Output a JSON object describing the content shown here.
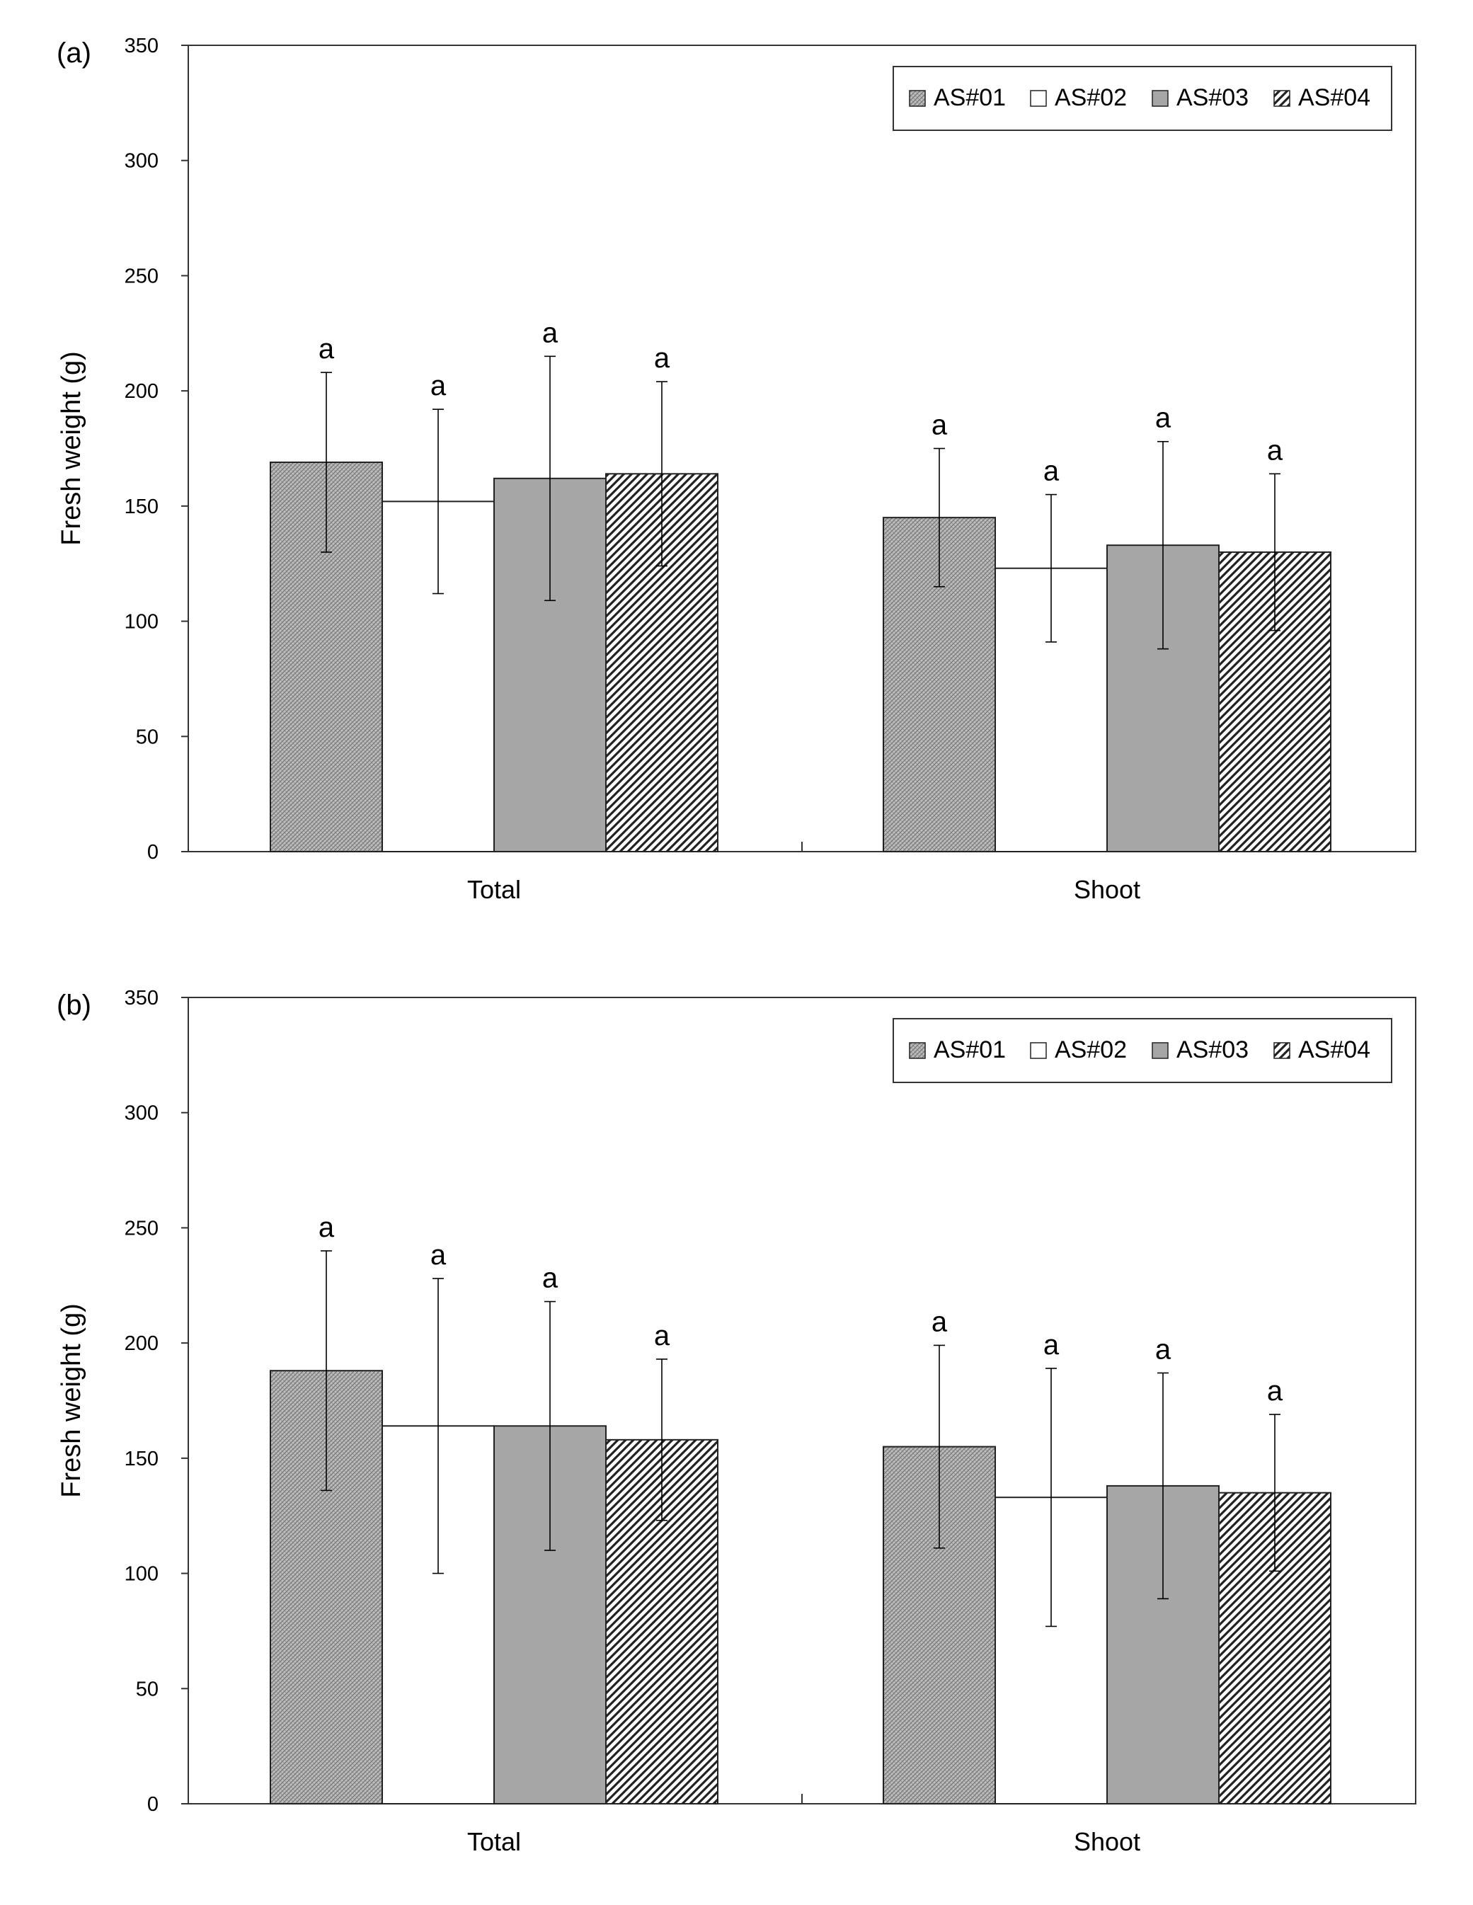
{
  "chart_data": [
    {
      "type": "bar",
      "panel_label": "(a)",
      "title": "",
      "xlabel": "",
      "ylabel": "Fresh weight (g)",
      "ylim": [
        0,
        350
      ],
      "yticks": [
        0,
        50,
        100,
        150,
        200,
        250,
        300,
        350
      ],
      "grid": false,
      "legend_position": "top-right",
      "categories": [
        "Total",
        "Shoot"
      ],
      "series": [
        {
          "name": "AS#01",
          "pattern": "crosshatch",
          "values": [
            169,
            145
          ],
          "errors": [
            39,
            30
          ],
          "letters": [
            "a",
            "a"
          ]
        },
        {
          "name": "AS#02",
          "pattern": "white",
          "values": [
            152,
            123
          ],
          "errors": [
            40,
            32
          ],
          "letters": [
            "a",
            "a"
          ]
        },
        {
          "name": "AS#03",
          "pattern": "gray",
          "values": [
            162,
            133
          ],
          "errors": [
            53,
            45
          ],
          "letters": [
            "a",
            "a"
          ]
        },
        {
          "name": "AS#04",
          "pattern": "diagonal",
          "values": [
            164,
            130
          ],
          "errors": [
            40,
            34
          ],
          "letters": [
            "a",
            "a"
          ]
        }
      ]
    },
    {
      "type": "bar",
      "panel_label": "(b)",
      "title": "",
      "xlabel": "",
      "ylabel": "Fresh weight (g)",
      "ylim": [
        0,
        350
      ],
      "yticks": [
        0,
        50,
        100,
        150,
        200,
        250,
        300,
        350
      ],
      "grid": false,
      "legend_position": "top-right",
      "categories": [
        "Total",
        "Shoot"
      ],
      "series": [
        {
          "name": "AS#01",
          "pattern": "crosshatch",
          "values": [
            188,
            155
          ],
          "errors": [
            52,
            44
          ],
          "letters": [
            "a",
            "a"
          ]
        },
        {
          "name": "AS#02",
          "pattern": "white",
          "values": [
            164,
            133
          ],
          "errors": [
            64,
            56
          ],
          "letters": [
            "a",
            "a"
          ]
        },
        {
          "name": "AS#03",
          "pattern": "gray",
          "values": [
            164,
            138
          ],
          "errors": [
            54,
            49
          ],
          "letters": [
            "a",
            "a"
          ]
        },
        {
          "name": "AS#04",
          "pattern": "diagonal",
          "values": [
            158,
            135
          ],
          "errors": [
            35,
            34
          ],
          "letters": [
            "a",
            "a"
          ]
        }
      ]
    }
  ],
  "colors": {
    "axis": "#333333",
    "bar_stroke": "#222222",
    "gray_fill": "#a6a6a6",
    "white_fill": "#ffffff"
  }
}
